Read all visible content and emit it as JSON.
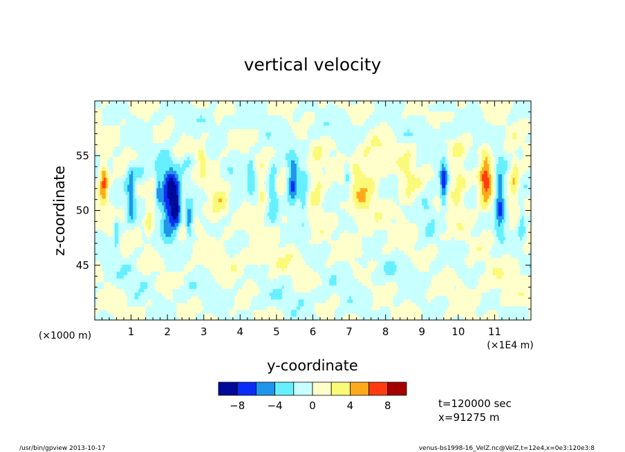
{
  "chart_data": {
    "type": "heatmap",
    "title": "vertical velocity",
    "xlabel": "y-coordinate",
    "ylabel": "z-coordinate",
    "x_unit_label": "(×1E4 m)",
    "y_unit_label": "(×1000 m)",
    "xlim": [
      0,
      12
    ],
    "ylim": [
      40,
      60
    ],
    "x_ticks": [
      1,
      2,
      3,
      4,
      5,
      6,
      7,
      8,
      9,
      10,
      11
    ],
    "x_tick_labels": [
      "1",
      "2",
      "3",
      "4",
      "5",
      "6",
      "7",
      "8",
      "9",
      "10",
      "11"
    ],
    "y_ticks": [
      45,
      50,
      55
    ],
    "y_tick_labels": [
      "45",
      "50",
      "55"
    ],
    "colorbar": {
      "levels": [
        -10,
        -8,
        -6,
        -4,
        -2,
        0,
        2,
        4,
        6,
        8,
        10
      ],
      "tick_values": [
        -8,
        -4,
        0,
        4,
        8
      ],
      "tick_labels": [
        "−8",
        "−4",
        "0",
        "4",
        "8"
      ],
      "colors": [
        "#000a99",
        "#0a2cf5",
        "#1f96eb",
        "#66f0ff",
        "#c8ffff",
        "#ffffcc",
        "#fafa78",
        "#ffaa1e",
        "#ff3c0f",
        "#a50000"
      ]
    },
    "grid": false
  },
  "annotations": {
    "time": "t=120000 sec",
    "position": "x=91275 m"
  },
  "footer": {
    "left": "/usr/bin/gpview   2013-10-17",
    "right": "venus-bs1998-16_VelZ.nc@VelZ,t=12e4,x=0e3:120e3:8"
  }
}
